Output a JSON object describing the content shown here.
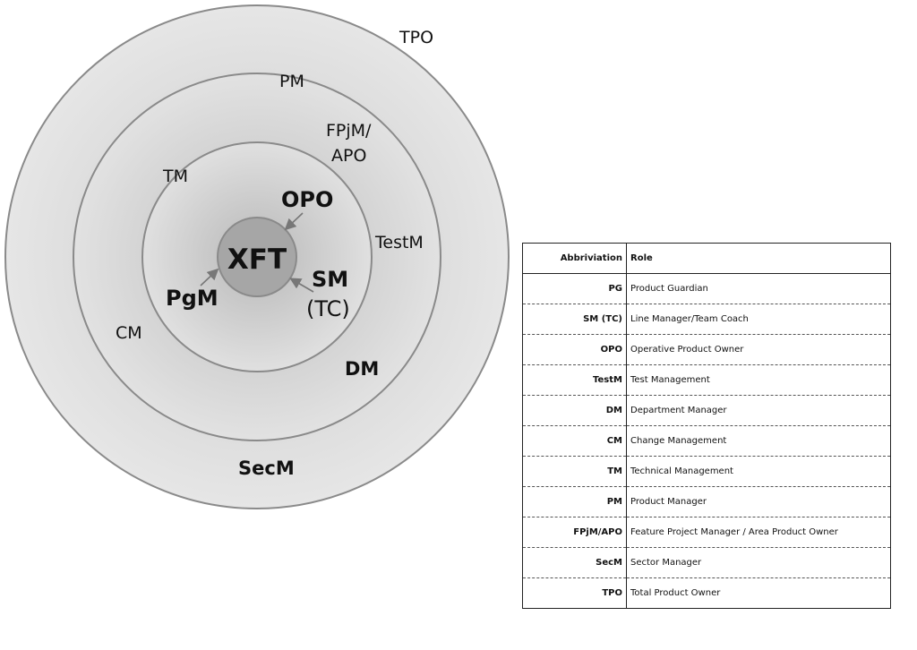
{
  "diagram": {
    "labels": {
      "tpo": "TPO",
      "pm": "PM",
      "fpjm_line1": "FPjM/",
      "fpjm_line2": "APO",
      "tm": "TM",
      "testm": "TestM",
      "cm": "CM",
      "dm": "DM",
      "secm": "SecM",
      "opo": "OPO",
      "xft": "XFT",
      "pgm": "PgM",
      "sm": "SM",
      "sm_tc": "(TC)"
    },
    "colors": {
      "ring_stroke": "#8a8a8a",
      "outer_fill": "#dcdcdc",
      "center_fill": "#a6a6a6"
    }
  },
  "table": {
    "headers": {
      "abbr": "Abbriviation",
      "role": "Role"
    },
    "rows": [
      {
        "abbr": "PG",
        "role": "Product Guardian"
      },
      {
        "abbr": "SM (TC)",
        "role": "Line Manager/Team Coach"
      },
      {
        "abbr": "OPO",
        "role": "Operative Product Owner"
      },
      {
        "abbr": "TestM",
        "role": "Test Management"
      },
      {
        "abbr": "DM",
        "role": "Department Manager"
      },
      {
        "abbr": "CM",
        "role": "Change Management"
      },
      {
        "abbr": "TM",
        "role": "Technical Management"
      },
      {
        "abbr": "PM",
        "role": "Product Manager"
      },
      {
        "abbr": "FPjM/APO",
        "role": "Feature Project Manager / Area Product Owner"
      },
      {
        "abbr": "SecM",
        "role": "Sector Manager"
      },
      {
        "abbr": "TPO",
        "role": "Total Product Owner"
      }
    ]
  }
}
